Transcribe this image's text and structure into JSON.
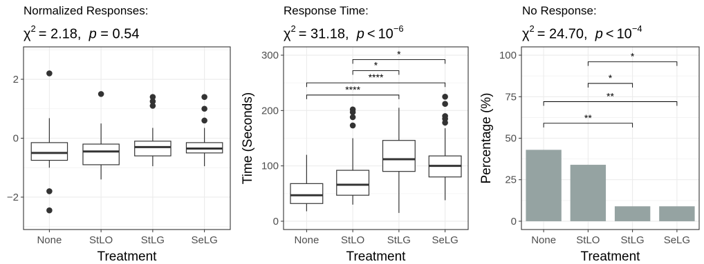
{
  "chart_data": [
    {
      "type": "box",
      "title": "Normalized Responses:",
      "stat": {
        "chi2": "2.18",
        "p": "0.54",
        "p_op": "="
      },
      "xlabel": "Treatment",
      "ylabel": "",
      "ylim": [
        -3.1,
        3.1
      ],
      "yticks": [
        -2,
        0,
        2
      ],
      "ytick_labels": [
        "−2",
        "0",
        "2"
      ],
      "categories": [
        "None",
        "StLO",
        "StLG",
        "SeLG"
      ],
      "boxes": [
        {
          "low": -1.0,
          "q1": -0.75,
          "median": -0.5,
          "q3": -0.15,
          "high": 0.68,
          "outliers": [
            2.2,
            -1.8,
            -2.45
          ]
        },
        {
          "low": -1.4,
          "q1": -0.9,
          "median": -0.45,
          "q3": -0.2,
          "high": 0.5,
          "outliers": [
            1.5
          ]
        },
        {
          "low": -0.95,
          "q1": -0.6,
          "median": -0.3,
          "q3": -0.1,
          "high": 0.35,
          "outliers": [
            1.4,
            1.25,
            1.1
          ]
        },
        {
          "low": -0.95,
          "q1": -0.5,
          "median": -0.35,
          "q3": -0.15,
          "high": 0.35,
          "outliers": [
            1.4,
            1.0,
            0.6
          ]
        }
      ],
      "grid": true
    },
    {
      "type": "box",
      "title": "Response Time:",
      "stat": {
        "chi2": "31.18",
        "p": "10",
        "p_exp": "−6",
        "p_op": "<"
      },
      "xlabel": "Treatment",
      "ylabel": "Time (Seconds)",
      "ylim": [
        -15,
        315
      ],
      "yticks": [
        0,
        100,
        200,
        300
      ],
      "ytick_labels": [
        "0",
        "100",
        "200",
        "300"
      ],
      "categories": [
        "None",
        "StLO",
        "StLG",
        "SeLG"
      ],
      "boxes": [
        {
          "low": 18,
          "q1": 32,
          "median": 47,
          "q3": 68,
          "high": 120,
          "outliers": []
        },
        {
          "low": 30,
          "q1": 47,
          "median": 66,
          "q3": 92,
          "high": 150,
          "outliers": [
            173,
            188,
            197,
            202
          ]
        },
        {
          "low": 15,
          "q1": 90,
          "median": 112,
          "q3": 146,
          "high": 205,
          "outliers": []
        },
        {
          "low": 38,
          "q1": 80,
          "median": 100,
          "q3": 118,
          "high": 168,
          "outliers": [
            178,
            185,
            190,
            212,
            225
          ]
        }
      ],
      "significance": [
        {
          "from": "None",
          "to": "StLG",
          "label": "****",
          "y": 228
        },
        {
          "from": "None",
          "to": "SeLG",
          "label": "****",
          "y": 250
        },
        {
          "from": "StLO",
          "to": "StLG",
          "label": "*",
          "y": 272
        },
        {
          "from": "StLO",
          "to": "SeLG",
          "label": "*",
          "y": 292
        }
      ],
      "grid": true
    },
    {
      "type": "bar",
      "title": "No Response:",
      "stat": {
        "chi2": "24.70",
        "p": "10",
        "p_exp": "−4",
        "p_op": "<"
      },
      "xlabel": "Treatment",
      "ylabel": "Percentage (%)",
      "ylim": [
        -5,
        105
      ],
      "yticks": [
        0,
        25,
        50,
        75,
        100
      ],
      "ytick_labels": [
        "0",
        "25",
        "50",
        "75",
        "100"
      ],
      "categories": [
        "None",
        "StLO",
        "StLG",
        "SeLG"
      ],
      "values": [
        43,
        34,
        9,
        9
      ],
      "bar_color": "#95a3a2",
      "significance": [
        {
          "from": "None",
          "to": "StLG",
          "label": "**",
          "y": 59
        },
        {
          "from": "None",
          "to": "SeLG",
          "label": "**",
          "y": 72
        },
        {
          "from": "StLO",
          "to": "StLG",
          "label": "*",
          "y": 83
        },
        {
          "from": "StLO",
          "to": "SeLG",
          "label": "*",
          "y": 96
        }
      ],
      "grid": true
    }
  ]
}
